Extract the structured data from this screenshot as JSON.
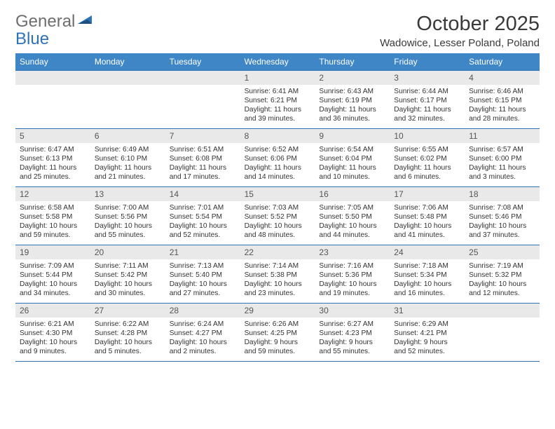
{
  "logo": {
    "word1": "General",
    "word2": "Blue"
  },
  "title": "October 2025",
  "location": "Wadowice, Lesser Poland, Poland",
  "dayNames": [
    "Sunday",
    "Monday",
    "Tuesday",
    "Wednesday",
    "Thursday",
    "Friday",
    "Saturday"
  ],
  "colors": {
    "headerBar": "#3f86c7",
    "ruler": "#2f73b7",
    "daynumBg": "#e9e9e9",
    "logoGray": "#6e6e6e",
    "logoBlue": "#2f73b7",
    "text": "#333333"
  },
  "weeks": [
    [
      {
        "day": "",
        "sunrise": "",
        "sunset": "",
        "daylight": ""
      },
      {
        "day": "",
        "sunrise": "",
        "sunset": "",
        "daylight": ""
      },
      {
        "day": "",
        "sunrise": "",
        "sunset": "",
        "daylight": ""
      },
      {
        "day": "1",
        "sunrise": "Sunrise: 6:41 AM",
        "sunset": "Sunset: 6:21 PM",
        "daylight": "Daylight: 11 hours and 39 minutes."
      },
      {
        "day": "2",
        "sunrise": "Sunrise: 6:43 AM",
        "sunset": "Sunset: 6:19 PM",
        "daylight": "Daylight: 11 hours and 36 minutes."
      },
      {
        "day": "3",
        "sunrise": "Sunrise: 6:44 AM",
        "sunset": "Sunset: 6:17 PM",
        "daylight": "Daylight: 11 hours and 32 minutes."
      },
      {
        "day": "4",
        "sunrise": "Sunrise: 6:46 AM",
        "sunset": "Sunset: 6:15 PM",
        "daylight": "Daylight: 11 hours and 28 minutes."
      }
    ],
    [
      {
        "day": "5",
        "sunrise": "Sunrise: 6:47 AM",
        "sunset": "Sunset: 6:13 PM",
        "daylight": "Daylight: 11 hours and 25 minutes."
      },
      {
        "day": "6",
        "sunrise": "Sunrise: 6:49 AM",
        "sunset": "Sunset: 6:10 PM",
        "daylight": "Daylight: 11 hours and 21 minutes."
      },
      {
        "day": "7",
        "sunrise": "Sunrise: 6:51 AM",
        "sunset": "Sunset: 6:08 PM",
        "daylight": "Daylight: 11 hours and 17 minutes."
      },
      {
        "day": "8",
        "sunrise": "Sunrise: 6:52 AM",
        "sunset": "Sunset: 6:06 PM",
        "daylight": "Daylight: 11 hours and 14 minutes."
      },
      {
        "day": "9",
        "sunrise": "Sunrise: 6:54 AM",
        "sunset": "Sunset: 6:04 PM",
        "daylight": "Daylight: 11 hours and 10 minutes."
      },
      {
        "day": "10",
        "sunrise": "Sunrise: 6:55 AM",
        "sunset": "Sunset: 6:02 PM",
        "daylight": "Daylight: 11 hours and 6 minutes."
      },
      {
        "day": "11",
        "sunrise": "Sunrise: 6:57 AM",
        "sunset": "Sunset: 6:00 PM",
        "daylight": "Daylight: 11 hours and 3 minutes."
      }
    ],
    [
      {
        "day": "12",
        "sunrise": "Sunrise: 6:58 AM",
        "sunset": "Sunset: 5:58 PM",
        "daylight": "Daylight: 10 hours and 59 minutes."
      },
      {
        "day": "13",
        "sunrise": "Sunrise: 7:00 AM",
        "sunset": "Sunset: 5:56 PM",
        "daylight": "Daylight: 10 hours and 55 minutes."
      },
      {
        "day": "14",
        "sunrise": "Sunrise: 7:01 AM",
        "sunset": "Sunset: 5:54 PM",
        "daylight": "Daylight: 10 hours and 52 minutes."
      },
      {
        "day": "15",
        "sunrise": "Sunrise: 7:03 AM",
        "sunset": "Sunset: 5:52 PM",
        "daylight": "Daylight: 10 hours and 48 minutes."
      },
      {
        "day": "16",
        "sunrise": "Sunrise: 7:05 AM",
        "sunset": "Sunset: 5:50 PM",
        "daylight": "Daylight: 10 hours and 44 minutes."
      },
      {
        "day": "17",
        "sunrise": "Sunrise: 7:06 AM",
        "sunset": "Sunset: 5:48 PM",
        "daylight": "Daylight: 10 hours and 41 minutes."
      },
      {
        "day": "18",
        "sunrise": "Sunrise: 7:08 AM",
        "sunset": "Sunset: 5:46 PM",
        "daylight": "Daylight: 10 hours and 37 minutes."
      }
    ],
    [
      {
        "day": "19",
        "sunrise": "Sunrise: 7:09 AM",
        "sunset": "Sunset: 5:44 PM",
        "daylight": "Daylight: 10 hours and 34 minutes."
      },
      {
        "day": "20",
        "sunrise": "Sunrise: 7:11 AM",
        "sunset": "Sunset: 5:42 PM",
        "daylight": "Daylight: 10 hours and 30 minutes."
      },
      {
        "day": "21",
        "sunrise": "Sunrise: 7:13 AM",
        "sunset": "Sunset: 5:40 PM",
        "daylight": "Daylight: 10 hours and 27 minutes."
      },
      {
        "day": "22",
        "sunrise": "Sunrise: 7:14 AM",
        "sunset": "Sunset: 5:38 PM",
        "daylight": "Daylight: 10 hours and 23 minutes."
      },
      {
        "day": "23",
        "sunrise": "Sunrise: 7:16 AM",
        "sunset": "Sunset: 5:36 PM",
        "daylight": "Daylight: 10 hours and 19 minutes."
      },
      {
        "day": "24",
        "sunrise": "Sunrise: 7:18 AM",
        "sunset": "Sunset: 5:34 PM",
        "daylight": "Daylight: 10 hours and 16 minutes."
      },
      {
        "day": "25",
        "sunrise": "Sunrise: 7:19 AM",
        "sunset": "Sunset: 5:32 PM",
        "daylight": "Daylight: 10 hours and 12 minutes."
      }
    ],
    [
      {
        "day": "26",
        "sunrise": "Sunrise: 6:21 AM",
        "sunset": "Sunset: 4:30 PM",
        "daylight": "Daylight: 10 hours and 9 minutes."
      },
      {
        "day": "27",
        "sunrise": "Sunrise: 6:22 AM",
        "sunset": "Sunset: 4:28 PM",
        "daylight": "Daylight: 10 hours and 5 minutes."
      },
      {
        "day": "28",
        "sunrise": "Sunrise: 6:24 AM",
        "sunset": "Sunset: 4:27 PM",
        "daylight": "Daylight: 10 hours and 2 minutes."
      },
      {
        "day": "29",
        "sunrise": "Sunrise: 6:26 AM",
        "sunset": "Sunset: 4:25 PM",
        "daylight": "Daylight: 9 hours and 59 minutes."
      },
      {
        "day": "30",
        "sunrise": "Sunrise: 6:27 AM",
        "sunset": "Sunset: 4:23 PM",
        "daylight": "Daylight: 9 hours and 55 minutes."
      },
      {
        "day": "31",
        "sunrise": "Sunrise: 6:29 AM",
        "sunset": "Sunset: 4:21 PM",
        "daylight": "Daylight: 9 hours and 52 minutes."
      },
      {
        "day": "",
        "sunrise": "",
        "sunset": "",
        "daylight": ""
      }
    ]
  ]
}
